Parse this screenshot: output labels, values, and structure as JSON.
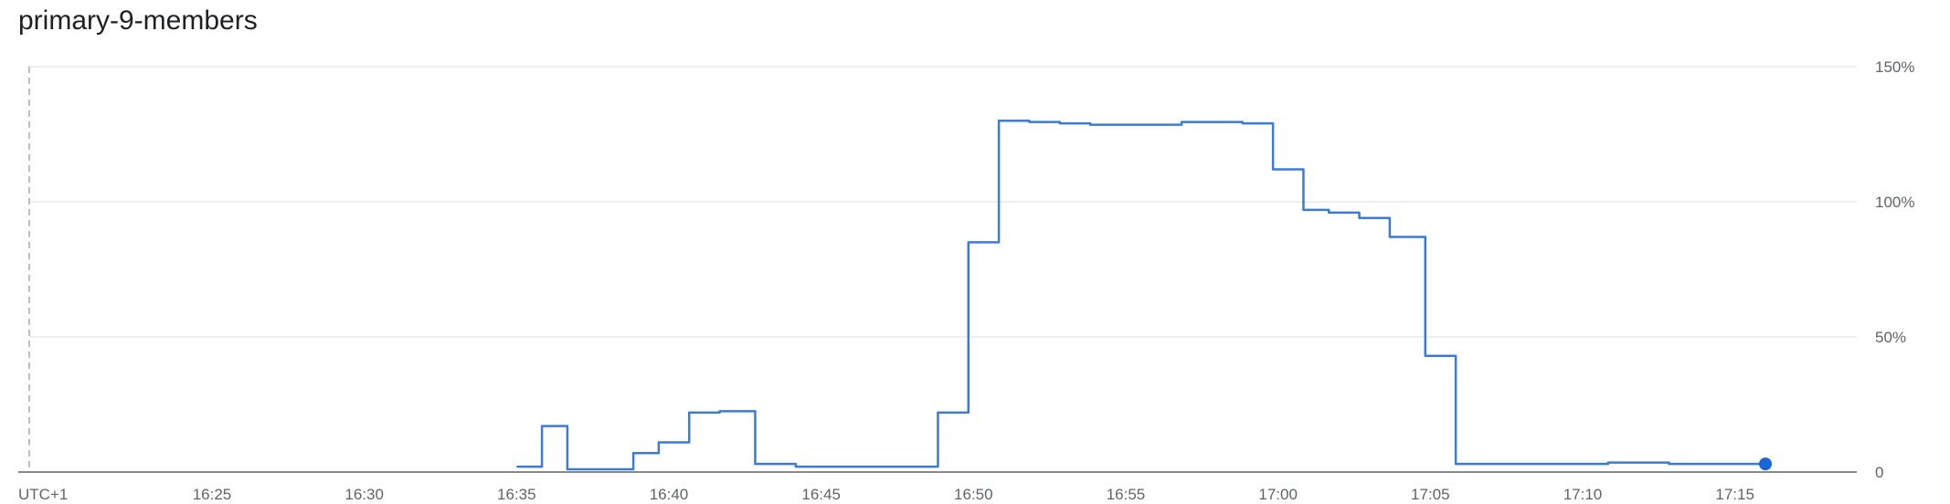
{
  "title": "primary-9-members",
  "chart_data": {
    "type": "line",
    "step": true,
    "title": "primary-9-members",
    "timezone_label": "UTC+1",
    "x_ticks": [
      "16:25",
      "16:30",
      "16:35",
      "16:40",
      "16:45",
      "16:50",
      "16:55",
      "17:00",
      "17:05",
      "17:10",
      "17:15"
    ],
    "y_ticks": [
      "0",
      "50%",
      "100%",
      "150%"
    ],
    "xlim": [
      "16:19",
      "17:19"
    ],
    "ylim": [
      0,
      150
    ],
    "grid": true,
    "series_color": "#3a7bd5",
    "series": [
      {
        "x": [
          "16:35",
          "16:35:50",
          "16:36:40",
          "16:37:40",
          "16:38:50",
          "16:39:40",
          "16:40:40",
          "16:41:30",
          "16:41:40",
          "16:42:50",
          "16:43:40",
          "16:44:10",
          "16:48:50",
          "16:49:50",
          "16:50:50",
          "16:51:50",
          "16:52:50",
          "16:53:50",
          "16:55:50",
          "16:56:50",
          "16:58:50",
          "16:59:50",
          "17:00:50",
          "17:01:40",
          "17:02:40",
          "17:03:40",
          "17:04:50",
          "17:05:50",
          "17:10:50",
          "17:12:50",
          "17:16"
        ],
        "values": [
          2,
          17,
          1,
          1,
          7,
          11,
          22,
          22,
          22.5,
          3,
          3,
          2,
          22,
          85,
          130,
          129.5,
          129,
          128.5,
          128.5,
          129.5,
          129,
          112,
          97,
          96,
          94,
          87,
          43,
          3,
          3.5,
          3,
          3
        ]
      }
    ]
  }
}
